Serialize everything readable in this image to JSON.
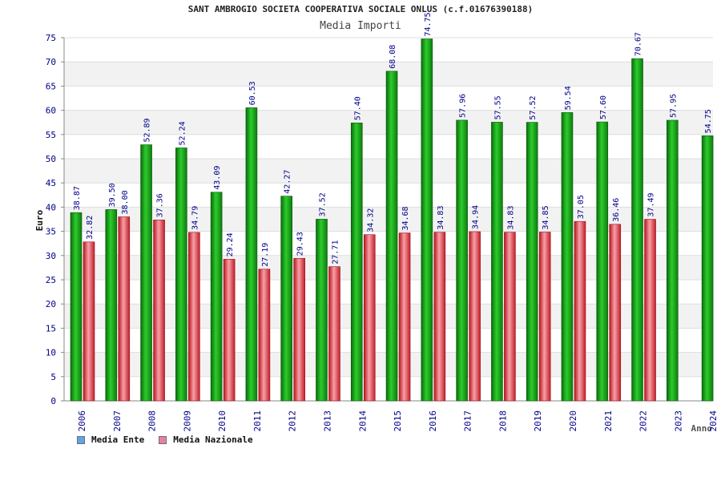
{
  "chart_data": {
    "type": "bar",
    "title": "SANT AMBROGIO SOCIETA COOPERATIVA SOCIALE ONLUS (c.f.01676390188)",
    "subtitle": "Media Importi",
    "xlabel": "Anno",
    "ylabel": "Euro",
    "ylim": [
      0,
      75
    ],
    "yticks": [
      0,
      5,
      10,
      15,
      20,
      25,
      30,
      35,
      40,
      45,
      50,
      55,
      60,
      65,
      70,
      75
    ],
    "categories": [
      "2006",
      "2007",
      "2008",
      "2009",
      "2010",
      "2011",
      "2012",
      "2013",
      "2014",
      "2015",
      "2016",
      "2017",
      "2018",
      "2019",
      "2020",
      "2021",
      "2022",
      "2023",
      "2024"
    ],
    "series": [
      {
        "name": "Media Ente",
        "color": "#22a722",
        "values": [
          38.87,
          39.5,
          52.89,
          52.24,
          43.09,
          60.53,
          42.27,
          37.52,
          57.4,
          68.08,
          74.75,
          57.96,
          57.55,
          57.52,
          59.54,
          57.6,
          70.67,
          57.95,
          54.75
        ],
        "labels": [
          "38.87",
          "39.50",
          "52.89",
          "52.24",
          "43.09",
          "60.53",
          "42.27",
          "37.52",
          "57.40",
          "68.08",
          "74.75",
          "57.96",
          "57.55",
          "57.52",
          "59.54",
          "57.60",
          "70.67",
          "57.95",
          "54.75"
        ]
      },
      {
        "name": "Media Nazionale",
        "color": "#e0303a",
        "values": [
          32.82,
          38.0,
          37.36,
          34.79,
          29.24,
          27.19,
          29.43,
          27.71,
          34.32,
          34.68,
          34.83,
          34.94,
          34.83,
          34.85,
          37.05,
          36.46,
          37.49,
          null,
          null
        ],
        "labels": [
          "32.82",
          "38.00",
          "37.36",
          "34.79",
          "29.24",
          "27.19",
          "29.43",
          "27.71",
          "34.32",
          "34.68",
          "34.83",
          "34.94",
          "34.83",
          "34.85",
          "37.05",
          "36.46",
          "37.49",
          "",
          ""
        ]
      }
    ],
    "legend": {
      "position": "bottom-left",
      "items": [
        {
          "name": "Media Ente",
          "color": "#5da5e8"
        },
        {
          "name": "Media Nazionale",
          "color": "#e87fa8"
        }
      ]
    },
    "grid": true,
    "band_colors": [
      "#ffffff",
      "#f2f2f2"
    ]
  }
}
